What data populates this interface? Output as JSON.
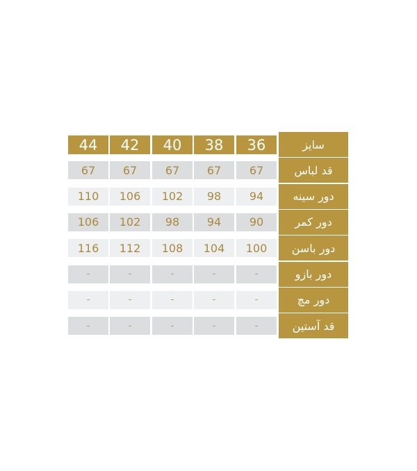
{
  "colors": {
    "gold": "#b8963f",
    "gray_dark": "#dcdddf",
    "gray_light": "#eeeff0",
    "number_text": "#a98a3c"
  },
  "table": {
    "header_label": "سایز",
    "sizes": [
      "36",
      "38",
      "40",
      "42",
      "44"
    ],
    "rows": [
      {
        "label": "قد لباس",
        "values": [
          "67",
          "67",
          "67",
          "67",
          "67"
        ]
      },
      {
        "label": "دور سینه",
        "values": [
          "94",
          "98",
          "102",
          "106",
          "110"
        ]
      },
      {
        "label": "دور کمر",
        "values": [
          "90",
          "94",
          "98",
          "102",
          "106"
        ]
      },
      {
        "label": "دور باسن",
        "values": [
          "100",
          "104",
          "108",
          "112",
          "116"
        ]
      },
      {
        "label": "دور بازو",
        "values": [
          "-",
          "-",
          "-",
          "-",
          "-"
        ]
      },
      {
        "label": "دور مچ",
        "values": [
          "-",
          "-",
          "-",
          "-",
          "-"
        ]
      },
      {
        "label": "قد آستین",
        "values": [
          "-",
          "-",
          "-",
          "-",
          "-"
        ]
      }
    ]
  }
}
